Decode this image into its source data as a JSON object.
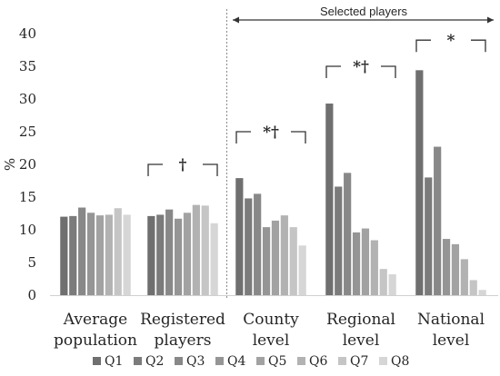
{
  "chart_data": {
    "type": "bar",
    "ylabel": "%",
    "ylim": [
      0,
      40
    ],
    "yticks": [
      "0",
      "5",
      "10",
      "15",
      "20",
      "25",
      "30",
      "35",
      "40"
    ],
    "categories": [
      [
        "Average",
        "population"
      ],
      [
        "Registered",
        "players"
      ],
      [
        "County",
        "level"
      ],
      [
        "Regional",
        "level"
      ],
      [
        "National",
        "level"
      ]
    ],
    "series": [
      {
        "name": "Q1",
        "color": "#6f6f6f",
        "values": [
          12.0,
          12.1,
          17.9,
          29.3,
          34.4
        ]
      },
      {
        "name": "Q2",
        "color": "#7b7b7b",
        "values": [
          12.1,
          12.3,
          14.8,
          16.6,
          18.0
        ]
      },
      {
        "name": "Q3",
        "color": "#888888",
        "values": [
          13.4,
          13.1,
          15.5,
          18.7,
          22.7
        ]
      },
      {
        "name": "Q4",
        "color": "#959595",
        "values": [
          12.6,
          11.7,
          10.4,
          9.6,
          8.6
        ]
      },
      {
        "name": "Q5",
        "color": "#a2a2a2",
        "values": [
          12.2,
          12.6,
          11.4,
          10.2,
          7.8
        ]
      },
      {
        "name": "Q6",
        "color": "#b2b2b2",
        "values": [
          12.3,
          13.8,
          12.2,
          8.4,
          5.5
        ]
      },
      {
        "name": "Q7",
        "color": "#c5c5c5",
        "values": [
          13.3,
          13.7,
          10.4,
          4.0,
          2.3
        ]
      },
      {
        "name": "Q8",
        "color": "#d6d6d6",
        "values": [
          12.3,
          11.0,
          7.6,
          3.2,
          0.8
        ]
      }
    ],
    "annotations": [
      {
        "category": 1,
        "text": "†",
        "bracket_level": 20
      },
      {
        "category": 2,
        "text": "*†",
        "bracket_level": 25
      },
      {
        "category": 3,
        "text": "*†",
        "bracket_level": 35
      },
      {
        "category": 4,
        "text": "*",
        "bracket_level": 39
      }
    ],
    "group_label": {
      "text": "Selected players",
      "from_category": 2,
      "to_category": 4
    },
    "legend": "bottom",
    "grid": false
  }
}
